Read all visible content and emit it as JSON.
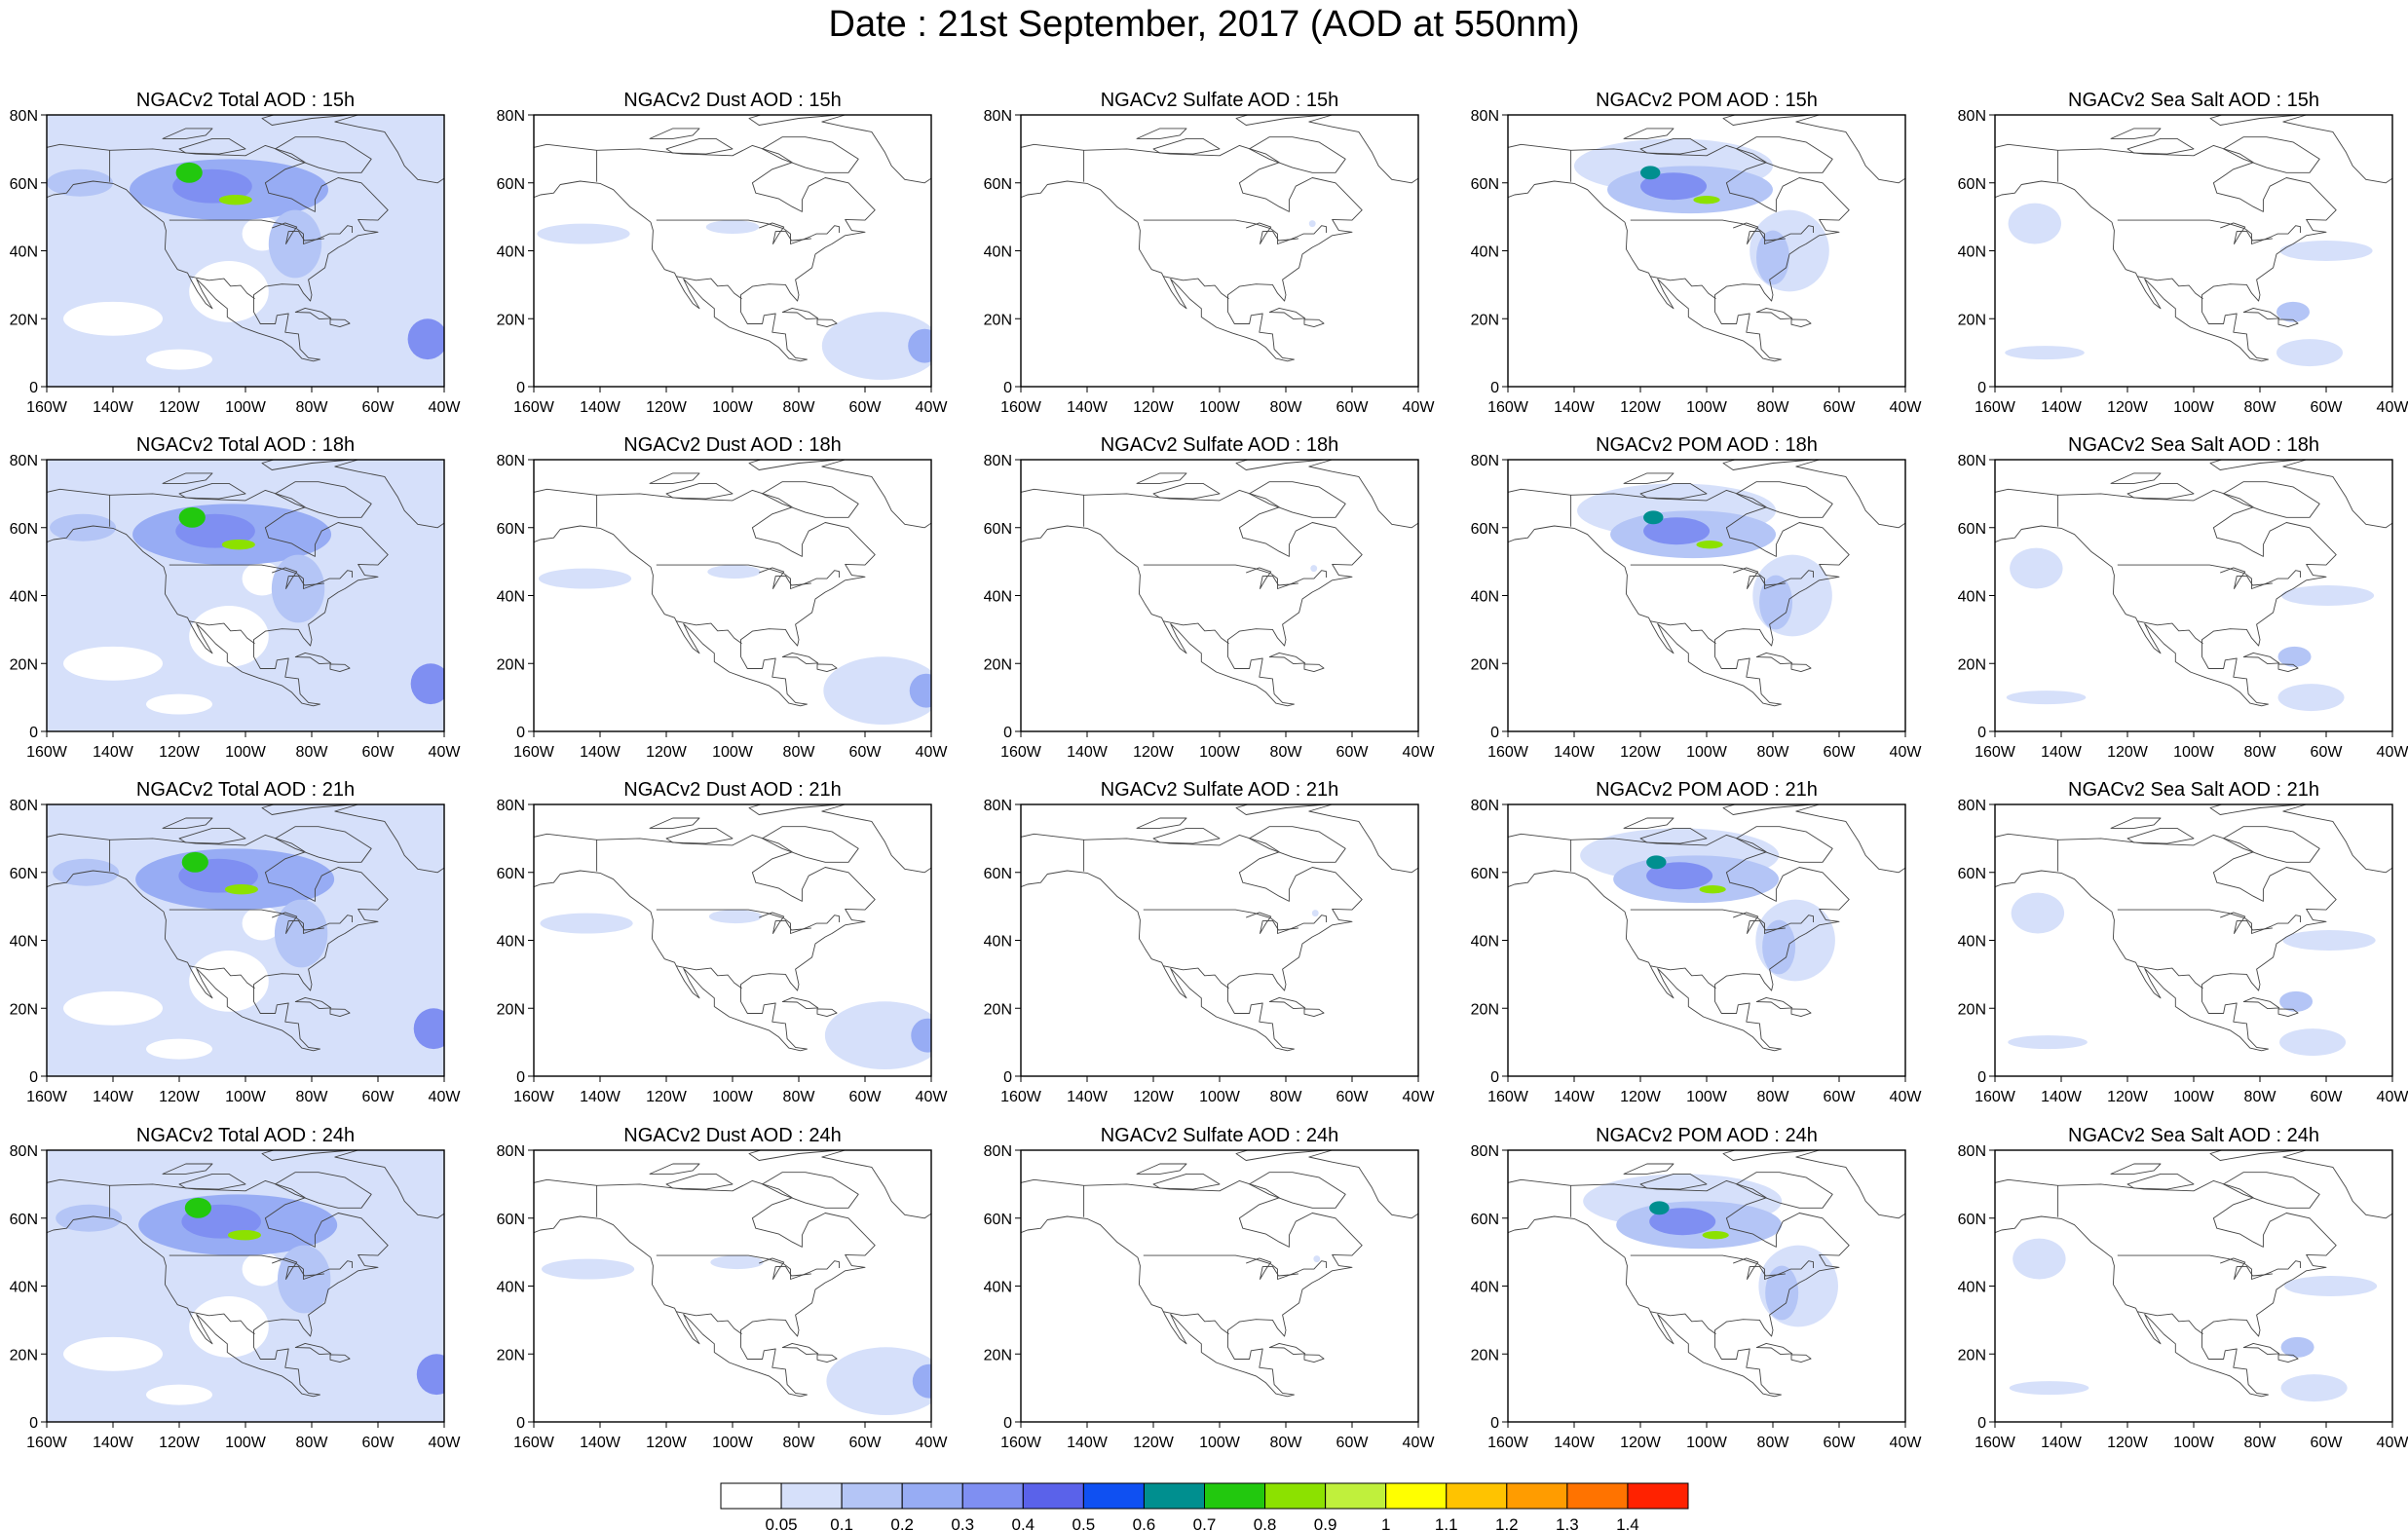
{
  "title": "Date : 21st September, 2017 (AOD at 550nm)",
  "rows": [
    {
      "hour": "15h",
      "panels": [
        "NGACv2 Total AOD : 15h",
        "NGACv2 Dust AOD : 15h",
        "NGACv2 Sulfate AOD : 15h",
        "NGACv2 POM AOD : 15h",
        "NGACv2 Sea Salt AOD : 15h"
      ]
    },
    {
      "hour": "18h",
      "panels": [
        "NGACv2 Total AOD : 18h",
        "NGACv2 Dust AOD : 18h",
        "NGACv2 Sulfate AOD : 18h",
        "NGACv2 POM AOD : 18h",
        "NGACv2 Sea Salt AOD : 18h"
      ]
    },
    {
      "hour": "21h",
      "panels": [
        "NGACv2 Total AOD : 21h",
        "NGACv2 Dust AOD : 21h",
        "NGACv2 Sulfate AOD : 21h",
        "NGACv2 POM AOD : 21h",
        "NGACv2 Sea Salt AOD : 21h"
      ]
    },
    {
      "hour": "24h",
      "panels": [
        "NGACv2 Total AOD : 24h",
        "NGACv2 Dust AOD : 24h",
        "NGACv2 Sulfate AOD : 24h",
        "NGACv2 POM AOD : 24h",
        "NGACv2 Sea Salt  AOD : 24h"
      ]
    }
  ],
  "columns": [
    "Total",
    "Dust",
    "Sulfate",
    "POM",
    "Sea Salt"
  ],
  "axes": {
    "x_ticks": [
      "160W",
      "140W",
      "120W",
      "100W",
      "80W",
      "60W",
      "40W"
    ],
    "y_ticks": [
      "0",
      "20N",
      "40N",
      "60N",
      "80N"
    ],
    "lon_range": [
      -160,
      -40
    ],
    "lat_range": [
      0,
      80
    ]
  },
  "colorbar": {
    "labels": [
      "0.05",
      "0.1",
      "0.2",
      "0.3",
      "0.4",
      "0.5",
      "0.6",
      "0.7",
      "0.8",
      "0.9",
      "1",
      "1.1",
      "1.2",
      "1.3",
      "1.4"
    ],
    "colors": [
      "#ffffff",
      "#d6e0fa",
      "#b4c5f6",
      "#97acf4",
      "#7f8ff2",
      "#5a62ea",
      "#0f50f2",
      "#008f8f",
      "#22c80e",
      "#8ce100",
      "#c0f03c",
      "#ffff00",
      "#ffc300",
      "#ff9c00",
      "#ff7300",
      "#ff2200"
    ]
  },
  "features": {
    "Total": {
      "background": "#d6e0fa",
      "blobs": [
        {
          "lon": -105,
          "lat": 58,
          "rx": 30,
          "ry": 9,
          "level": 3
        },
        {
          "lon": -110,
          "lat": 59,
          "rx": 12,
          "ry": 5,
          "level": 4
        },
        {
          "lon": -117,
          "lat": 63,
          "rx": 4,
          "ry": 3,
          "level": 8
        },
        {
          "lon": -103,
          "lat": 55,
          "rx": 5,
          "ry": 1.5,
          "level": 9
        },
        {
          "lon": -85,
          "lat": 42,
          "rx": 8,
          "ry": 10,
          "level": 2
        },
        {
          "lon": -45,
          "lat": 14,
          "rx": 6,
          "ry": 6,
          "level": 4
        },
        {
          "lon": -150,
          "lat": 60,
          "rx": 10,
          "ry": 4,
          "level": 2
        }
      ],
      "clear": [
        {
          "lon": -105,
          "lat": 28,
          "rx": 12,
          "ry": 9
        },
        {
          "lon": -140,
          "lat": 20,
          "rx": 15,
          "ry": 5
        },
        {
          "lon": -95,
          "lat": 45,
          "rx": 6,
          "ry": 5
        },
        {
          "lon": -120,
          "lat": 8,
          "rx": 10,
          "ry": 3
        }
      ]
    },
    "Dust": {
      "background": "#ffffff",
      "blobs": [
        {
          "lon": -145,
          "lat": 45,
          "rx": 14,
          "ry": 3,
          "level": 1
        },
        {
          "lon": -100,
          "lat": 47,
          "rx": 8,
          "ry": 2,
          "level": 1
        },
        {
          "lon": -55,
          "lat": 12,
          "rx": 18,
          "ry": 10,
          "level": 1
        },
        {
          "lon": -42,
          "lat": 12,
          "rx": 5,
          "ry": 5,
          "level": 3
        }
      ],
      "clear": []
    },
    "Sulfate": {
      "background": "#ffffff",
      "blobs": [
        {
          "lon": -72,
          "lat": 48,
          "rx": 1,
          "ry": 1,
          "level": 1
        }
      ],
      "clear": []
    },
    "POM": {
      "background": "#ffffff",
      "blobs": [
        {
          "lon": -110,
          "lat": 65,
          "rx": 30,
          "ry": 8,
          "level": 1
        },
        {
          "lon": -105,
          "lat": 58,
          "rx": 25,
          "ry": 7,
          "level": 2
        },
        {
          "lon": -110,
          "lat": 59,
          "rx": 10,
          "ry": 4,
          "level": 4
        },
        {
          "lon": -117,
          "lat": 63,
          "rx": 3,
          "ry": 2,
          "level": 7
        },
        {
          "lon": -100,
          "lat": 55,
          "rx": 4,
          "ry": 1.2,
          "level": 9
        },
        {
          "lon": -75,
          "lat": 40,
          "rx": 12,
          "ry": 12,
          "level": 1
        },
        {
          "lon": -80,
          "lat": 38,
          "rx": 5,
          "ry": 8,
          "level": 2
        }
      ],
      "clear": []
    },
    "Sea Salt": {
      "background": "#ffffff",
      "blobs": [
        {
          "lon": -148,
          "lat": 48,
          "rx": 8,
          "ry": 6,
          "level": 1
        },
        {
          "lon": -60,
          "lat": 40,
          "rx": 14,
          "ry": 3,
          "level": 1
        },
        {
          "lon": -70,
          "lat": 22,
          "rx": 5,
          "ry": 3,
          "level": 2
        },
        {
          "lon": -145,
          "lat": 10,
          "rx": 12,
          "ry": 2,
          "level": 1
        },
        {
          "lon": -65,
          "lat": 10,
          "rx": 10,
          "ry": 4,
          "level": 1
        }
      ],
      "clear": []
    }
  }
}
